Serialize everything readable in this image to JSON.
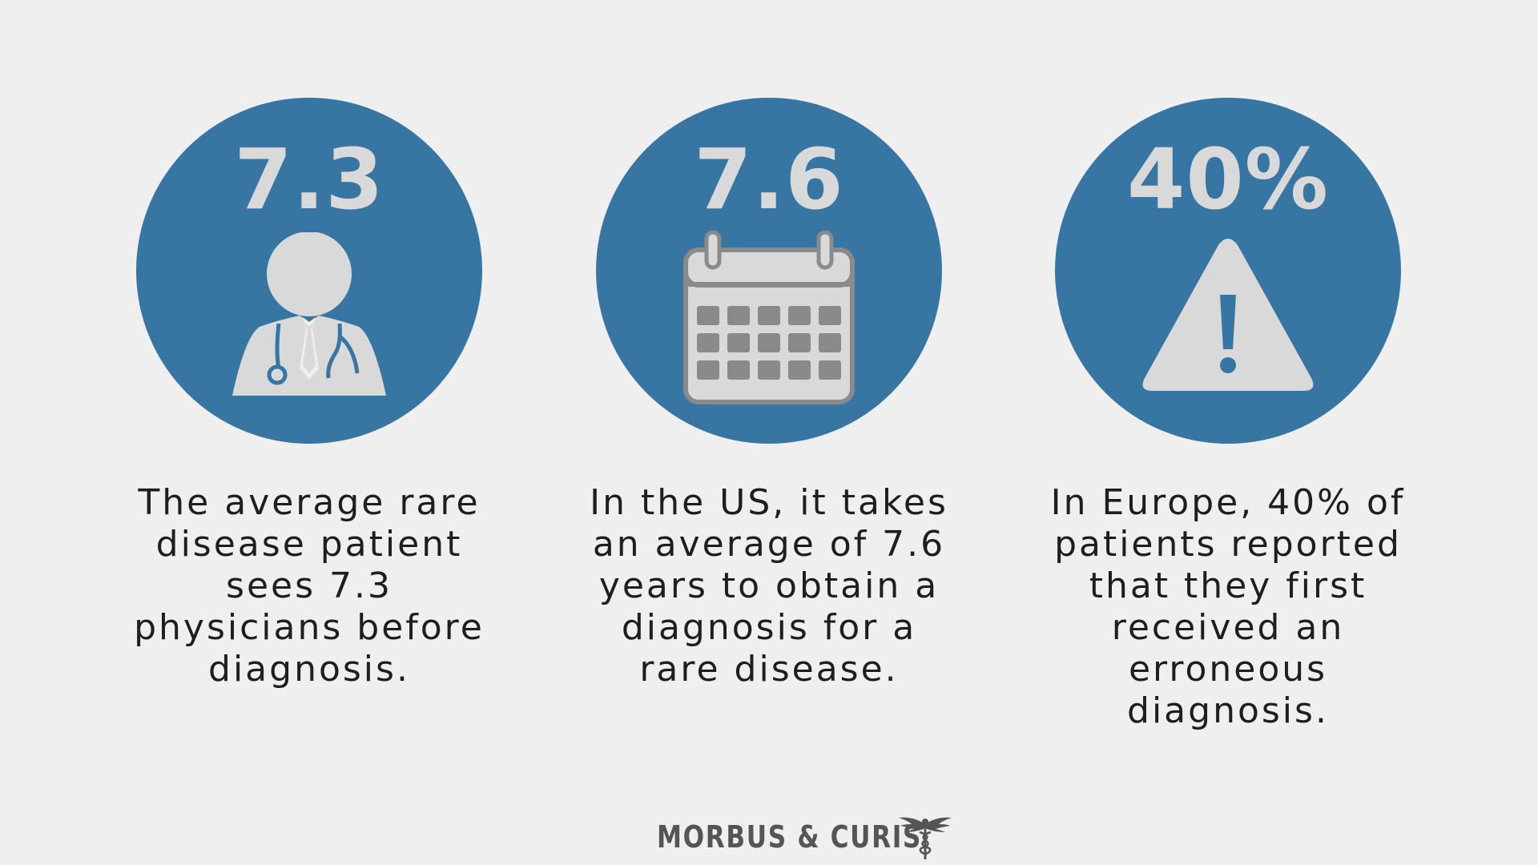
{
  "colors": {
    "background": "#f0eff0",
    "circle": "#3776a2",
    "icon": "#d9d9d9",
    "text": "#1e1e1e",
    "brand": "#555555"
  },
  "stats": [
    {
      "number": "7.3",
      "icon": "doctor-icon",
      "caption": "The average rare disease patient sees 7.3 physicians before diagnosis."
    },
    {
      "number": "7.6",
      "icon": "calendar-icon",
      "caption": "In the US, it takes an average of 7.6 years to obtain a diagnosis for a rare disease."
    },
    {
      "number": "40%",
      "icon": "warning-icon",
      "caption": "In Europe, 40% of patients reported that they first received an erroneous diagnosis."
    }
  ],
  "footer": {
    "brand_name": "MORBUS & CURIS",
    "logo_icon": "caduceus-icon"
  }
}
